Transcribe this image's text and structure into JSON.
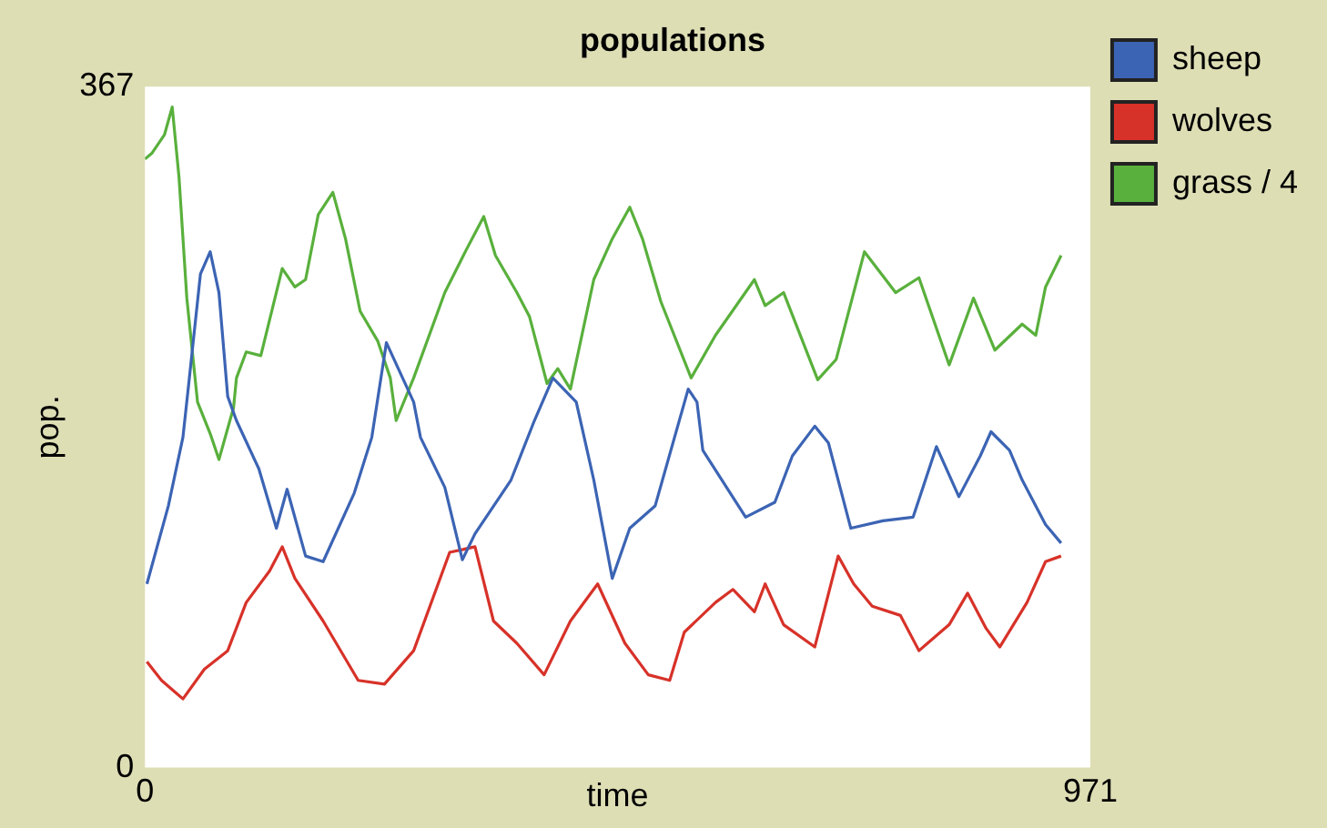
{
  "chart_data": {
    "type": "line",
    "title": "populations",
    "xlabel": "time",
    "ylabel": "pop.",
    "xlim": [
      0,
      971
    ],
    "ylim": [
      0,
      367
    ],
    "xticks": [
      0,
      971
    ],
    "yticks": [
      0,
      367
    ],
    "grid": false,
    "legend": "right",
    "marker": "none",
    "series": [
      {
        "name": "sheep",
        "color": "#3c64b4",
        "x": [
          2,
          24,
          39,
          45,
          57,
          67,
          76,
          85,
          94,
          117,
          135,
          146,
          165,
          183,
          215,
          233,
          248,
          276,
          283,
          308,
          326,
          339,
          376,
          400,
          419,
          443,
          461,
          480,
          498,
          524,
          558,
          567,
          573,
          617,
          647,
          665,
          688,
          702,
          725,
          758,
          789,
          813,
          836,
          858,
          869,
          888,
          901,
          925,
          941
        ],
        "values": [
          99,
          141,
          178,
          207,
          266,
          278,
          256,
          200,
          187,
          161,
          129,
          150,
          114,
          111,
          148,
          178,
          229,
          197,
          178,
          151,
          112,
          126,
          155,
          187,
          210,
          197,
          155,
          102,
          129,
          141,
          204,
          197,
          171,
          135,
          143,
          168,
          184,
          175,
          129,
          133,
          135,
          173,
          146,
          168,
          181,
          171,
          155,
          131,
          121
        ]
      },
      {
        "name": "wolves",
        "color": "#d73229",
        "x": [
          2,
          17,
          39,
          61,
          85,
          104,
          128,
          141,
          154,
          183,
          219,
          246,
          276,
          313,
          339,
          358,
          382,
          410,
          437,
          465,
          493,
          517,
          539,
          554,
          586,
          604,
          626,
          637,
          656,
          688,
          712,
          728,
          747,
          776,
          795,
          826,
          845,
          864,
          878,
          906,
          925,
          941
        ],
        "values": [
          57,
          47,
          37,
          53,
          63,
          89,
          106,
          119,
          102,
          79,
          47,
          45,
          63,
          116,
          119,
          79,
          67,
          50,
          79,
          99,
          67,
          50,
          47,
          73,
          89,
          96,
          84,
          99,
          77,
          65,
          114,
          99,
          87,
          82,
          63,
          77,
          94,
          75,
          65,
          89,
          111,
          114
        ]
      },
      {
        "name": "grass / 4",
        "color": "#59b03c",
        "x": [
          0,
          7,
          20,
          28,
          35,
          43,
          54,
          67,
          76,
          91,
          94,
          104,
          119,
          141,
          154,
          165,
          178,
          193,
          206,
          221,
          239,
          252,
          258,
          276,
          308,
          330,
          348,
          360,
          382,
          395,
          413,
          424,
          437,
          461,
          480,
          498,
          511,
          530,
          561,
          586,
          626,
          637,
          656,
          691,
          710,
          739,
          771,
          795,
          826,
          851,
          873,
          901,
          915,
          925,
          941
        ],
        "values": [
          328,
          331,
          341,
          356,
          318,
          253,
          197,
          180,
          166,
          194,
          210,
          224,
          222,
          269,
          259,
          263,
          298,
          310,
          285,
          246,
          230,
          210,
          187,
          210,
          256,
          279,
          297,
          276,
          256,
          243,
          207,
          215,
          204,
          263,
          285,
          302,
          285,
          251,
          210,
          233,
          263,
          249,
          256,
          209,
          220,
          278,
          256,
          264,
          217,
          253,
          225,
          239,
          233,
          259,
          276
        ]
      }
    ]
  }
}
